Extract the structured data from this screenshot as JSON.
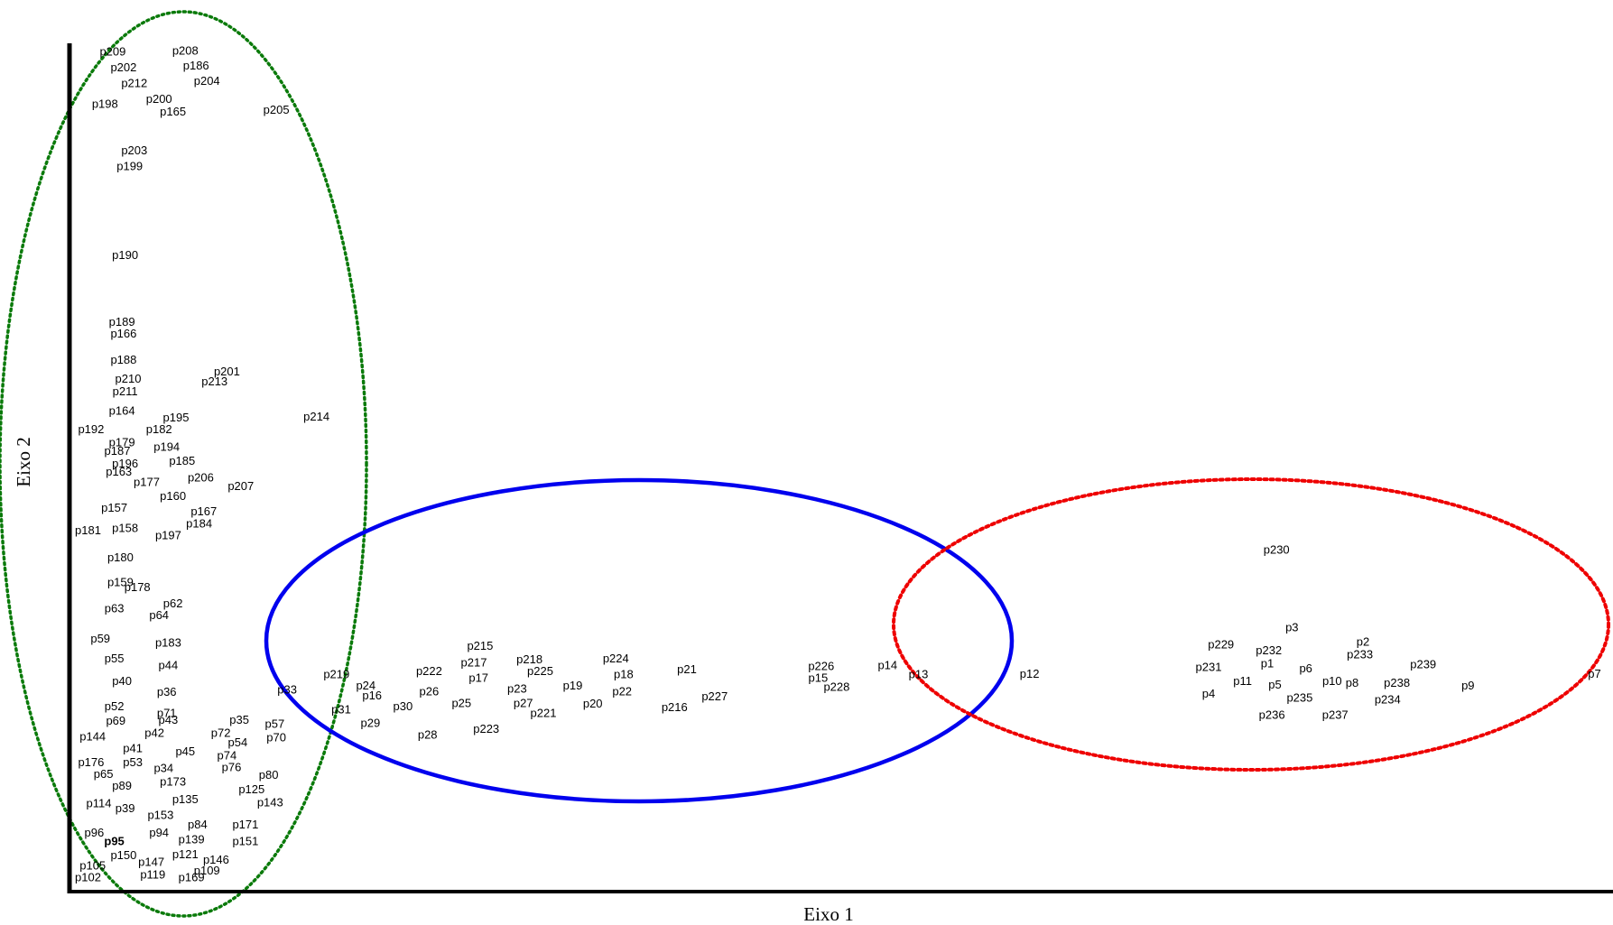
{
  "chart_data": {
    "type": "scatter",
    "title": "",
    "xlabel": "Eixo 1",
    "ylabel": "Eixo 2",
    "xlim": [
      0,
      100
    ],
    "ylim": [
      0,
      100
    ],
    "grid": false,
    "legend": "none",
    "point_marker": "text-label-only",
    "points": [
      {
        "label": "p209",
        "x": 2.8,
        "y": 99.0
      },
      {
        "label": "p208",
        "x": 7.5,
        "y": 99.1
      },
      {
        "label": "p202",
        "x": 3.5,
        "y": 97.1
      },
      {
        "label": "p186",
        "x": 8.2,
        "y": 97.3
      },
      {
        "label": "p212",
        "x": 4.2,
        "y": 95.2
      },
      {
        "label": "p204",
        "x": 8.9,
        "y": 95.5
      },
      {
        "label": "p198",
        "x": 2.3,
        "y": 92.7
      },
      {
        "label": "p200",
        "x": 5.8,
        "y": 93.3
      },
      {
        "label": "p165",
        "x": 6.7,
        "y": 91.8
      },
      {
        "label": "p205",
        "x": 13.4,
        "y": 92.0
      },
      {
        "label": "p203",
        "x": 4.2,
        "y": 87.2
      },
      {
        "label": "p199",
        "x": 3.9,
        "y": 85.3
      },
      {
        "label": "p190",
        "x": 3.6,
        "y": 74.7
      },
      {
        "label": "p189",
        "x": 3.4,
        "y": 66.7
      },
      {
        "label": "p166",
        "x": 3.5,
        "y": 65.3
      },
      {
        "label": "p188",
        "x": 3.5,
        "y": 62.2
      },
      {
        "label": "p210",
        "x": 3.8,
        "y": 59.9
      },
      {
        "label": "p201",
        "x": 10.2,
        "y": 60.8
      },
      {
        "label": "p213",
        "x": 9.4,
        "y": 59.6
      },
      {
        "label": "p211",
        "x": 3.6,
        "y": 58.4
      },
      {
        "label": "p164",
        "x": 3.4,
        "y": 56.1
      },
      {
        "label": "p195",
        "x": 6.9,
        "y": 55.3
      },
      {
        "label": "p214",
        "x": 16.0,
        "y": 55.4
      },
      {
        "label": "p192",
        "x": 1.4,
        "y": 53.9
      },
      {
        "label": "p182",
        "x": 5.8,
        "y": 53.9
      },
      {
        "label": "p179",
        "x": 3.4,
        "y": 52.3
      },
      {
        "label": "p194",
        "x": 6.3,
        "y": 51.8
      },
      {
        "label": "p187",
        "x": 3.1,
        "y": 51.3
      },
      {
        "label": "p196",
        "x": 3.6,
        "y": 49.8
      },
      {
        "label": "p185",
        "x": 7.3,
        "y": 50.1
      },
      {
        "label": "p163",
        "x": 3.2,
        "y": 48.8
      },
      {
        "label": "p206",
        "x": 8.5,
        "y": 48.1
      },
      {
        "label": "p177",
        "x": 5.0,
        "y": 47.6
      },
      {
        "label": "p207",
        "x": 11.1,
        "y": 47.1
      },
      {
        "label": "p160",
        "x": 6.7,
        "y": 45.9
      },
      {
        "label": "p157",
        "x": 2.9,
        "y": 44.5
      },
      {
        "label": "p167",
        "x": 8.7,
        "y": 44.1
      },
      {
        "label": "p184",
        "x": 8.4,
        "y": 42.6
      },
      {
        "label": "p181",
        "x": 1.2,
        "y": 41.8
      },
      {
        "label": "p158",
        "x": 3.6,
        "y": 42.1
      },
      {
        "label": "p197",
        "x": 6.4,
        "y": 41.2
      },
      {
        "label": "p180",
        "x": 3.3,
        "y": 38.6
      },
      {
        "label": "p159",
        "x": 3.3,
        "y": 35.6
      },
      {
        "label": "p178",
        "x": 4.4,
        "y": 35.0
      },
      {
        "label": "p62",
        "x": 6.7,
        "y": 33.1
      },
      {
        "label": "p63",
        "x": 2.9,
        "y": 32.5
      },
      {
        "label": "p64",
        "x": 5.8,
        "y": 31.7
      },
      {
        "label": "p59",
        "x": 2.0,
        "y": 28.9
      },
      {
        "label": "p183",
        "x": 6.4,
        "y": 28.4
      },
      {
        "label": "p55",
        "x": 2.9,
        "y": 26.5
      },
      {
        "label": "p44",
        "x": 6.4,
        "y": 25.7
      },
      {
        "label": "p40",
        "x": 3.4,
        "y": 23.8
      },
      {
        "label": "p36",
        "x": 6.3,
        "y": 22.5
      },
      {
        "label": "p52",
        "x": 2.9,
        "y": 20.8
      },
      {
        "label": "p71",
        "x": 6.3,
        "y": 20.0
      },
      {
        "label": "p69",
        "x": 3.0,
        "y": 19.1
      },
      {
        "label": "p43",
        "x": 6.4,
        "y": 19.2
      },
      {
        "label": "p35",
        "x": 11.0,
        "y": 19.2
      },
      {
        "label": "p144",
        "x": 1.5,
        "y": 17.2
      },
      {
        "label": "p42",
        "x": 5.5,
        "y": 17.6
      },
      {
        "label": "p72",
        "x": 9.8,
        "y": 17.6
      },
      {
        "label": "p57",
        "x": 13.3,
        "y": 18.7
      },
      {
        "label": "p54",
        "x": 10.9,
        "y": 16.5
      },
      {
        "label": "p70",
        "x": 13.4,
        "y": 17.1
      },
      {
        "label": "p41",
        "x": 4.1,
        "y": 15.8
      },
      {
        "label": "p45",
        "x": 7.5,
        "y": 15.4
      },
      {
        "label": "p74",
        "x": 10.2,
        "y": 14.9
      },
      {
        "label": "p176",
        "x": 1.4,
        "y": 14.1
      },
      {
        "label": "p53",
        "x": 4.1,
        "y": 14.1
      },
      {
        "label": "p65",
        "x": 2.2,
        "y": 12.7
      },
      {
        "label": "p34",
        "x": 6.1,
        "y": 13.4
      },
      {
        "label": "p76",
        "x": 10.5,
        "y": 13.5
      },
      {
        "label": "p80",
        "x": 12.9,
        "y": 12.6
      },
      {
        "label": "p89",
        "x": 3.4,
        "y": 11.3
      },
      {
        "label": "p173",
        "x": 6.7,
        "y": 11.8
      },
      {
        "label": "p125",
        "x": 11.8,
        "y": 10.9
      },
      {
        "label": "p135",
        "x": 7.5,
        "y": 9.7
      },
      {
        "label": "p143",
        "x": 13.0,
        "y": 9.3
      },
      {
        "label": "p114",
        "x": 1.9,
        "y": 9.2
      },
      {
        "label": "p39",
        "x": 3.6,
        "y": 8.6
      },
      {
        "label": "p153",
        "x": 5.9,
        "y": 7.8
      },
      {
        "label": "p171",
        "x": 11.4,
        "y": 6.7
      },
      {
        "label": "p84",
        "x": 8.3,
        "y": 6.7
      },
      {
        "label": "p96",
        "x": 1.6,
        "y": 5.7
      },
      {
        "label": "p94",
        "x": 5.8,
        "y": 5.7
      },
      {
        "label": "p139",
        "x": 7.9,
        "y": 4.9
      },
      {
        "label": "p151",
        "x": 11.4,
        "y": 4.7
      },
      {
        "label": "p95",
        "x": 2.9,
        "y": 4.7,
        "bold": true
      },
      {
        "label": "p150",
        "x": 3.5,
        "y": 3.0
      },
      {
        "label": "p121",
        "x": 7.5,
        "y": 3.1
      },
      {
        "label": "p146",
        "x": 9.5,
        "y": 2.5
      },
      {
        "label": "p147",
        "x": 5.3,
        "y": 2.2
      },
      {
        "label": "p105",
        "x": 1.5,
        "y": 1.8
      },
      {
        "label": "p109",
        "x": 8.9,
        "y": 1.2
      },
      {
        "label": "p102",
        "x": 1.2,
        "y": 0.4
      },
      {
        "label": "p119",
        "x": 5.4,
        "y": 0.7
      },
      {
        "label": "p169",
        "x": 7.9,
        "y": 0.4
      },
      {
        "label": "p215",
        "x": 26.6,
        "y": 28.0
      },
      {
        "label": "p218",
        "x": 29.8,
        "y": 26.4
      },
      {
        "label": "p224",
        "x": 35.4,
        "y": 26.5
      },
      {
        "label": "p217",
        "x": 26.2,
        "y": 26.0
      },
      {
        "label": "p225",
        "x": 30.5,
        "y": 25.0
      },
      {
        "label": "p222",
        "x": 23.3,
        "y": 25.0
      },
      {
        "label": "p226",
        "x": 48.7,
        "y": 25.6
      },
      {
        "label": "p14",
        "x": 53.0,
        "y": 25.7
      },
      {
        "label": "p219",
        "x": 17.3,
        "y": 24.6
      },
      {
        "label": "p21",
        "x": 40.0,
        "y": 25.2
      },
      {
        "label": "p18",
        "x": 35.9,
        "y": 24.6
      },
      {
        "label": "p17",
        "x": 26.5,
        "y": 24.2
      },
      {
        "label": "p15",
        "x": 48.5,
        "y": 24.2
      },
      {
        "label": "p13",
        "x": 55.0,
        "y": 24.6
      },
      {
        "label": "p12",
        "x": 62.2,
        "y": 24.7
      },
      {
        "label": "p24",
        "x": 19.2,
        "y": 23.3
      },
      {
        "label": "p19",
        "x": 32.6,
        "y": 23.3
      },
      {
        "label": "p228",
        "x": 49.7,
        "y": 23.1
      },
      {
        "label": "p33",
        "x": 14.1,
        "y": 22.8
      },
      {
        "label": "p23",
        "x": 29.0,
        "y": 22.9
      },
      {
        "label": "p22",
        "x": 35.8,
        "y": 22.6
      },
      {
        "label": "p26",
        "x": 23.3,
        "y": 22.6
      },
      {
        "label": "p16",
        "x": 19.6,
        "y": 22.1
      },
      {
        "label": "p227",
        "x": 41.8,
        "y": 22.0
      },
      {
        "label": "p27",
        "x": 29.4,
        "y": 21.2
      },
      {
        "label": "p25",
        "x": 25.4,
        "y": 21.2
      },
      {
        "label": "p20",
        "x": 33.9,
        "y": 21.1
      },
      {
        "label": "p216",
        "x": 39.2,
        "y": 20.7
      },
      {
        "label": "p30",
        "x": 21.6,
        "y": 20.8
      },
      {
        "label": "p31",
        "x": 17.6,
        "y": 20.4
      },
      {
        "label": "p221",
        "x": 30.7,
        "y": 20.0
      },
      {
        "label": "p29",
        "x": 19.5,
        "y": 18.8
      },
      {
        "label": "p223",
        "x": 27.0,
        "y": 18.1
      },
      {
        "label": "p28",
        "x": 23.2,
        "y": 17.4
      },
      {
        "label": "p230",
        "x": 78.2,
        "y": 39.5
      },
      {
        "label": "p3",
        "x": 79.2,
        "y": 30.2
      },
      {
        "label": "p2",
        "x": 83.8,
        "y": 28.5
      },
      {
        "label": "p229",
        "x": 74.6,
        "y": 28.2
      },
      {
        "label": "p232",
        "x": 77.7,
        "y": 27.5
      },
      {
        "label": "p233",
        "x": 83.6,
        "y": 27.0
      },
      {
        "label": "p239",
        "x": 87.7,
        "y": 25.8
      },
      {
        "label": "p1",
        "x": 77.6,
        "y": 25.9
      },
      {
        "label": "p231",
        "x": 73.8,
        "y": 25.5
      },
      {
        "label": "p6",
        "x": 80.1,
        "y": 25.3
      },
      {
        "label": "p7",
        "x": 98.8,
        "y": 24.7
      },
      {
        "label": "p11",
        "x": 76.0,
        "y": 23.8
      },
      {
        "label": "p10",
        "x": 81.8,
        "y": 23.8
      },
      {
        "label": "p8",
        "x": 83.1,
        "y": 23.6
      },
      {
        "label": "p238",
        "x": 86.0,
        "y": 23.6
      },
      {
        "label": "p5",
        "x": 78.1,
        "y": 23.4
      },
      {
        "label": "p9",
        "x": 90.6,
        "y": 23.3
      },
      {
        "label": "p4",
        "x": 73.8,
        "y": 22.3
      },
      {
        "label": "p235",
        "x": 79.7,
        "y": 21.8
      },
      {
        "label": "p234",
        "x": 85.4,
        "y": 21.6
      },
      {
        "label": "p236",
        "x": 77.9,
        "y": 19.8
      },
      {
        "label": "p237",
        "x": 82.0,
        "y": 19.8
      }
    ],
    "groups": [
      {
        "color": "#0a7a0a",
        "line_style": "dotted"
      },
      {
        "color": "#0000ee",
        "line_style": "solid"
      },
      {
        "color": "#ee0000",
        "line_style": "dotted"
      }
    ]
  }
}
